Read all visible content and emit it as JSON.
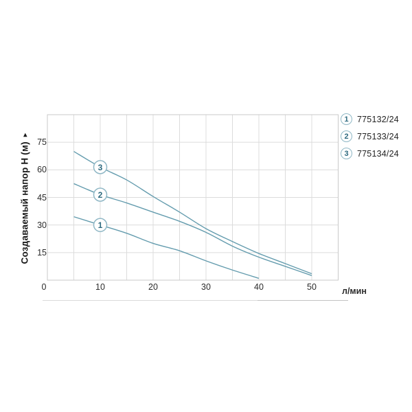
{
  "chart_data": {
    "type": "line",
    "title": "",
    "ylabel": "Создаваемый напор Н (м)",
    "ylabel_arrow": "►",
    "xlabel": "л/мин",
    "xlim": [
      0,
      55
    ],
    "ylim": [
      0,
      90
    ],
    "xticks": [
      0,
      10,
      20,
      30,
      40,
      50
    ],
    "yticks": [
      15,
      30,
      45,
      60,
      75
    ],
    "x_grid_step": 5,
    "y_grid_step": 15,
    "grid": "on",
    "legend_position": "outside-top-right",
    "series": [
      {
        "marker": "1",
        "name": "775132/24",
        "marker_x": 10,
        "points": [
          [
            5,
            34.5
          ],
          [
            10,
            30
          ],
          [
            15,
            25.5
          ],
          [
            20,
            20
          ],
          [
            25,
            16
          ],
          [
            30,
            10.5
          ],
          [
            35,
            5.5
          ],
          [
            40,
            1
          ]
        ]
      },
      {
        "marker": "2",
        "name": "775133/24",
        "marker_x": 10,
        "points": [
          [
            5,
            52.5
          ],
          [
            10,
            46.5
          ],
          [
            15,
            42
          ],
          [
            20,
            37
          ],
          [
            25,
            32
          ],
          [
            30,
            26
          ],
          [
            35,
            18.5
          ],
          [
            40,
            12.5
          ],
          [
            45,
            7.5
          ],
          [
            50,
            2.5
          ]
        ]
      },
      {
        "marker": "3",
        "name": "775134/24",
        "marker_x": 10,
        "points": [
          [
            5,
            70
          ],
          [
            10,
            61.5
          ],
          [
            15,
            54.5
          ],
          [
            20,
            45.5
          ],
          [
            25,
            37
          ],
          [
            30,
            28
          ],
          [
            35,
            21
          ],
          [
            40,
            14.5
          ],
          [
            45,
            9
          ],
          [
            50,
            3.5
          ]
        ]
      }
    ]
  },
  "legend": {
    "items": [
      {
        "num": "1",
        "label": "775132/24"
      },
      {
        "num": "2",
        "label": "775133/24"
      },
      {
        "num": "3",
        "label": "775134/24"
      }
    ]
  },
  "colors": {
    "curve": "#649cae",
    "grid": "#dcdcdc",
    "border": "#c9c9c9",
    "tick_text": "#2b2b2b",
    "axis_title_text": "#1a1a1a",
    "marker_ring": "#8fb7c5",
    "marker_text": "#2e6a7f",
    "legend_text": "#222222",
    "divider": "#d2d2d2"
  }
}
